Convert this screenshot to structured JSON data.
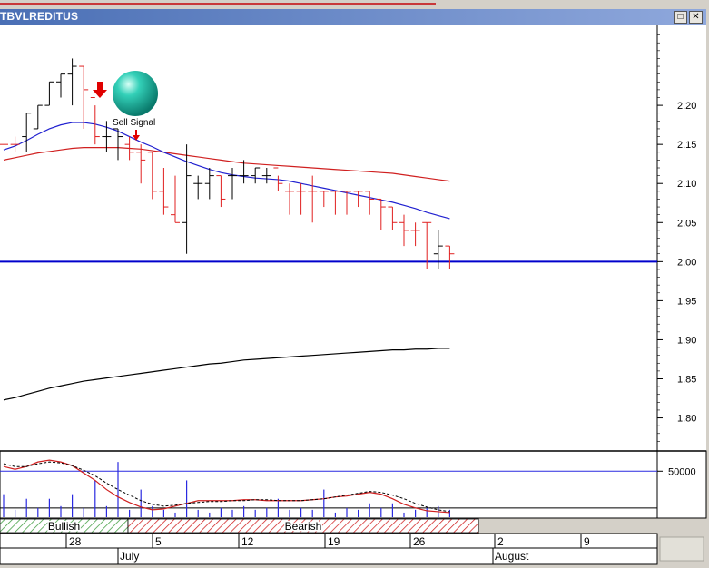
{
  "window": {
    "title": "TBVLREDITUS",
    "restore_label": "□",
    "close_label": "✕"
  },
  "annotations": {
    "sell_signal": "Sell Signal"
  },
  "chart_data": {
    "type": "ohlc",
    "title": "",
    "price_ylim": [
      1.76,
      2.3
    ],
    "price_ticks": [
      "2.20",
      "2.15",
      "2.10",
      "2.05",
      "2.00",
      "1.95",
      "1.90",
      "1.85",
      "1.80"
    ],
    "support_level": 2.0,
    "bars": [
      {
        "o": 2.15,
        "h": 2.15,
        "l": 2.15,
        "c": 2.15,
        "dir": "down"
      },
      {
        "o": 2.15,
        "h": 2.16,
        "l": 2.14,
        "c": 2.15,
        "dir": "down"
      },
      {
        "o": 2.16,
        "h": 2.19,
        "l": 2.14,
        "c": 2.19,
        "dir": "up"
      },
      {
        "o": 2.17,
        "h": 2.2,
        "l": 2.17,
        "c": 2.2,
        "dir": "up"
      },
      {
        "o": 2.2,
        "h": 2.23,
        "l": 2.2,
        "c": 2.23,
        "dir": "up"
      },
      {
        "o": 2.23,
        "h": 2.24,
        "l": 2.21,
        "c": 2.24,
        "dir": "up"
      },
      {
        "o": 2.24,
        "h": 2.26,
        "l": 2.2,
        "c": 2.25,
        "dir": "up"
      },
      {
        "o": 2.25,
        "h": 2.25,
        "l": 2.17,
        "c": 2.22,
        "dir": "down"
      },
      {
        "o": 2.21,
        "h": 2.2,
        "l": 2.15,
        "c": 2.16,
        "dir": "down"
      },
      {
        "o": 2.16,
        "h": 2.18,
        "l": 2.14,
        "c": 2.16,
        "dir": "up"
      },
      {
        "o": 2.17,
        "h": 2.17,
        "l": 2.13,
        "c": 2.16,
        "dir": "up"
      },
      {
        "o": 2.15,
        "h": 2.16,
        "l": 2.13,
        "c": 2.14,
        "dir": "down"
      },
      {
        "o": 2.14,
        "h": 2.15,
        "l": 2.1,
        "c": 2.13,
        "dir": "down"
      },
      {
        "o": 2.14,
        "h": 2.14,
        "l": 2.08,
        "c": 2.09,
        "dir": "down"
      },
      {
        "o": 2.09,
        "h": 2.12,
        "l": 2.06,
        "c": 2.07,
        "dir": "down"
      },
      {
        "o": 2.06,
        "h": 2.11,
        "l": 2.05,
        "c": 2.05,
        "dir": "down"
      },
      {
        "o": 2.05,
        "h": 2.15,
        "l": 2.01,
        "c": 2.11,
        "dir": "up"
      },
      {
        "o": 2.1,
        "h": 2.11,
        "l": 2.08,
        "c": 2.1,
        "dir": "up"
      },
      {
        "o": 2.1,
        "h": 2.12,
        "l": 2.08,
        "c": 2.11,
        "dir": "up"
      },
      {
        "o": 2.11,
        "h": 2.11,
        "l": 2.07,
        "c": 2.08,
        "dir": "down"
      },
      {
        "o": 2.11,
        "h": 2.12,
        "l": 2.08,
        "c": 2.11,
        "dir": "up"
      },
      {
        "o": 2.11,
        "h": 2.13,
        "l": 2.1,
        "c": 2.11,
        "dir": "up"
      },
      {
        "o": 2.11,
        "h": 2.12,
        "l": 2.1,
        "c": 2.12,
        "dir": "up"
      },
      {
        "o": 2.11,
        "h": 2.12,
        "l": 2.1,
        "c": 2.11,
        "dir": "up"
      },
      {
        "o": 2.12,
        "h": 2.11,
        "l": 2.09,
        "c": 2.1,
        "dir": "down"
      },
      {
        "o": 2.09,
        "h": 2.1,
        "l": 2.06,
        "c": 2.09,
        "dir": "down"
      },
      {
        "o": 2.09,
        "h": 2.1,
        "l": 2.06,
        "c": 2.09,
        "dir": "down"
      },
      {
        "o": 2.09,
        "h": 2.11,
        "l": 2.05,
        "c": 2.09,
        "dir": "down"
      },
      {
        "o": 2.09,
        "h": 2.09,
        "l": 2.07,
        "c": 2.09,
        "dir": "down"
      },
      {
        "o": 2.09,
        "h": 2.09,
        "l": 2.06,
        "c": 2.09,
        "dir": "down"
      },
      {
        "o": 2.09,
        "h": 2.09,
        "l": 2.06,
        "c": 2.09,
        "dir": "down"
      },
      {
        "o": 2.09,
        "h": 2.09,
        "l": 2.07,
        "c": 2.09,
        "dir": "down"
      },
      {
        "o": 2.09,
        "h": 2.09,
        "l": 2.06,
        "c": 2.08,
        "dir": "down"
      },
      {
        "o": 2.08,
        "h": 2.08,
        "l": 2.04,
        "c": 2.07,
        "dir": "down"
      },
      {
        "o": 2.07,
        "h": 2.07,
        "l": 2.04,
        "c": 2.05,
        "dir": "down"
      },
      {
        "o": 2.05,
        "h": 2.06,
        "l": 2.02,
        "c": 2.04,
        "dir": "down"
      },
      {
        "o": 2.04,
        "h": 2.05,
        "l": 2.02,
        "c": 2.04,
        "dir": "down"
      },
      {
        "o": 2.05,
        "h": 2.05,
        "l": 1.99,
        "c": 2.05,
        "dir": "down"
      },
      {
        "o": 2.01,
        "h": 2.04,
        "l": 1.99,
        "c": 2.02,
        "dir": "up"
      },
      {
        "o": 2.02,
        "h": 2.02,
        "l": 1.99,
        "c": 2.01,
        "dir": "down"
      }
    ],
    "ma_fast": [
      2.143,
      2.148,
      2.155,
      2.163,
      2.17,
      2.175,
      2.178,
      2.178,
      2.176,
      2.172,
      2.167,
      2.16,
      2.153,
      2.147,
      2.14,
      2.134,
      2.128,
      2.123,
      2.118,
      2.114,
      2.111,
      2.109,
      2.107,
      2.106,
      2.105,
      2.103,
      2.1,
      2.097,
      2.094,
      2.091,
      2.088,
      2.085,
      2.082,
      2.079,
      2.076,
      2.072,
      2.068,
      2.063,
      2.059,
      2.055
    ],
    "ma_slow": [
      2.13,
      2.133,
      2.136,
      2.139,
      2.141,
      2.143,
      2.145,
      2.146,
      2.146,
      2.146,
      2.146,
      2.145,
      2.144,
      2.142,
      2.14,
      2.138,
      2.136,
      2.134,
      2.132,
      2.13,
      2.128,
      2.126,
      2.125,
      2.124,
      2.123,
      2.122,
      2.121,
      2.12,
      2.119,
      2.118,
      2.117,
      2.116,
      2.115,
      2.114,
      2.113,
      2.111,
      2.109,
      2.107,
      2.105,
      2.103
    ],
    "ma_long": [
      1.823,
      1.826,
      1.83,
      1.834,
      1.838,
      1.841,
      1.844,
      1.847,
      1.849,
      1.851,
      1.853,
      1.855,
      1.857,
      1.859,
      1.861,
      1.863,
      1.865,
      1.867,
      1.869,
      1.87,
      1.872,
      1.874,
      1.875,
      1.876,
      1.877,
      1.878,
      1.879,
      1.88,
      1.881,
      1.882,
      1.883,
      1.884,
      1.885,
      1.886,
      1.887,
      1.887,
      1.888,
      1.888,
      1.889,
      1.889
    ],
    "indicator": {
      "ylim": [
        0,
        70000
      ],
      "tick": 50000,
      "tick_label": "50000",
      "level_line": 10000,
      "volumes": [
        25000,
        8000,
        20000,
        10000,
        20000,
        12000,
        25000,
        10000,
        40000,
        12000,
        60000,
        8000,
        30000,
        12000,
        8000,
        5000,
        40000,
        8000,
        5000,
        10000,
        8000,
        12000,
        8000,
        10000,
        20000,
        8000,
        10000,
        8000,
        30000,
        5000,
        10000,
        8000,
        15000,
        10000,
        15000,
        5000,
        8000,
        10000,
        12000,
        8000
      ],
      "line_red": [
        55000,
        52000,
        55000,
        60000,
        62000,
        60000,
        56000,
        48000,
        40000,
        30000,
        22000,
        16000,
        11000,
        8000,
        9000,
        12000,
        15000,
        18000,
        18000,
        18000,
        18000,
        19000,
        19000,
        18000,
        18000,
        18000,
        18000,
        19000,
        20000,
        22000,
        23000,
        25000,
        27000,
        25000,
        20000,
        14000,
        10000,
        7000,
        6000,
        5000
      ],
      "line_dash": [
        58000,
        55000,
        55000,
        58000,
        60000,
        59000,
        56000,
        51000,
        45000,
        37000,
        30000,
        24000,
        18000,
        14000,
        12000,
        13000,
        15000,
        16000,
        17000,
        17000,
        18000,
        18000,
        19000,
        19000,
        18000,
        18000,
        18000,
        19000,
        20000,
        22000,
        24000,
        26000,
        28000,
        27000,
        24000,
        20000,
        15000,
        11000,
        8000,
        6000
      ]
    },
    "signal_bands": [
      {
        "label": "Bullish",
        "type": "bullish",
        "from": -0.5,
        "to": 5.5
      },
      {
        "label": "Bearish",
        "type": "bearish",
        "from": 5.5,
        "to": 24.5
      }
    ],
    "x_ticks": [
      {
        "label": "28",
        "at": 3
      },
      {
        "label": "5",
        "at": 7
      },
      {
        "label": "12",
        "at": 11
      },
      {
        "label": "19",
        "at": 15
      },
      {
        "label": "26",
        "at": 19
      },
      {
        "label": "2",
        "at": 23
      },
      {
        "label": "9",
        "at": 27
      }
    ],
    "month_labels": [
      {
        "label": "July",
        "at": 5.5
      },
      {
        "label": "August",
        "at": 22.9
      }
    ],
    "colors": {
      "up": "#000000",
      "down": "#e02020",
      "ma_fast": "#2020d0",
      "ma_slow": "#d02020",
      "ma_long": "#000000",
      "support": "#0000cc",
      "volume": "#2a2ae0",
      "bullish": "#3a9a3a",
      "bearish": "#d02020"
    }
  }
}
